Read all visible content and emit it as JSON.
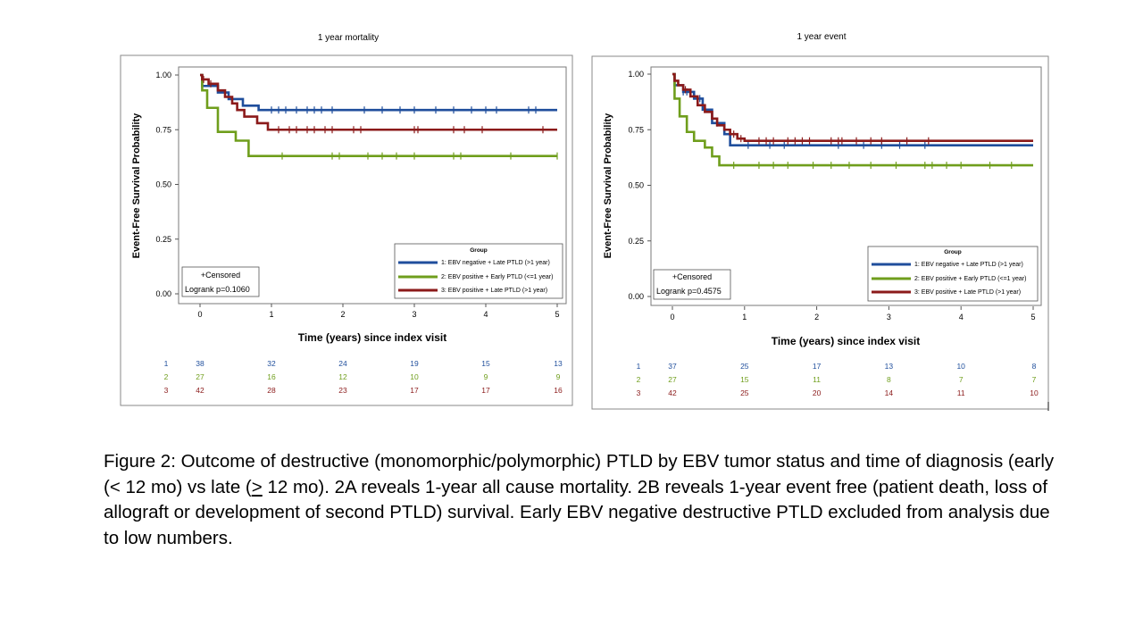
{
  "charts": [
    {
      "title": "1 year mortality",
      "xlabel": "Time (years) since index visit",
      "ylabel": "Event-Free Survival Probability",
      "x_ticks": [
        "0",
        "1",
        "2",
        "3",
        "4",
        "5"
      ],
      "y_ticks": [
        "0.00",
        "0.25",
        "0.50",
        "0.75",
        "1.00"
      ],
      "censored_label": "+Censored",
      "logrank_label": "Logrank p=0.1060",
      "legend_title": "Group",
      "legend_items": [
        "1: EBV negative + Late PTLD (>1 year)",
        "2: EBV positive + Early PTLD (<=1 year)",
        "3: EBV positive + Late PTLD (>1 year)"
      ],
      "risk_table": [
        {
          "group": "1",
          "counts": [
            "38",
            "32",
            "24",
            "19",
            "15",
            "13"
          ]
        },
        {
          "group": "2",
          "counts": [
            "27",
            "16",
            "12",
            "10",
            "9",
            "9"
          ]
        },
        {
          "group": "3",
          "counts": [
            "42",
            "28",
            "23",
            "17",
            "17",
            "16"
          ]
        }
      ]
    },
    {
      "title": "1 year event",
      "xlabel": "Time (years) since index visit",
      "ylabel": "Event-Free Survival Probability",
      "x_ticks": [
        "0",
        "1",
        "2",
        "3",
        "4",
        "5"
      ],
      "y_ticks": [
        "0.00",
        "0.25",
        "0.50",
        "0.75",
        "1.00"
      ],
      "censored_label": "+Censored",
      "logrank_label": "Logrank p=0.4575",
      "legend_title": "Group",
      "legend_items": [
        "1: EBV negative + Late PTLD (>1 year)",
        "2: EBV positive + Early PTLD (<=1 year)",
        "3: EBV positive + Late PTLD (>1 year)"
      ],
      "risk_table": [
        {
          "group": "1",
          "counts": [
            "37",
            "25",
            "17",
            "13",
            "10",
            "8"
          ]
        },
        {
          "group": "2",
          "counts": [
            "27",
            "15",
            "11",
            "8",
            "7",
            "7"
          ]
        },
        {
          "group": "3",
          "counts": [
            "42",
            "25",
            "20",
            "14",
            "11",
            "10"
          ]
        }
      ]
    }
  ],
  "chart_data": [
    {
      "type": "line",
      "title": "1 year mortality",
      "xlabel": "Time (years) since index visit",
      "ylabel": "Event-Free Survival Probability",
      "xlim": [
        0,
        5
      ],
      "ylim": [
        0,
        1
      ],
      "colors": [
        "#1f4e9c",
        "#6f9e1c",
        "#8b1a1a"
      ],
      "series": [
        {
          "name": "1: EBV negative + Late PTLD (>1 year)",
          "x": [
            0,
            0.03,
            0.25,
            0.4,
            0.6,
            0.82,
            5
          ],
          "y": [
            1.0,
            0.95,
            0.92,
            0.89,
            0.86,
            0.84,
            0.84
          ],
          "censored": [
            1.0,
            1.1,
            1.2,
            1.35,
            1.5,
            1.6,
            1.7,
            1.85,
            2.3,
            2.55,
            2.8,
            3.0,
            3.3,
            3.55,
            3.8,
            4.0,
            4.15,
            4.6,
            4.7
          ]
        },
        {
          "name": "2: EBV positive + Early PTLD (<=1 year)",
          "x": [
            0,
            0.03,
            0.1,
            0.25,
            0.5,
            0.68,
            5
          ],
          "y": [
            1.0,
            0.93,
            0.85,
            0.74,
            0.7,
            0.63,
            0.63
          ],
          "censored": [
            1.15,
            1.85,
            1.95,
            2.35,
            2.55,
            2.75,
            3.0,
            3.55,
            3.65,
            4.35,
            5.0
          ]
        },
        {
          "name": "3: EBV positive + Late PTLD (>1 year)",
          "x": [
            0,
            0.03,
            0.12,
            0.25,
            0.35,
            0.45,
            0.52,
            0.62,
            0.8,
            0.95,
            5
          ],
          "y": [
            1.0,
            0.98,
            0.96,
            0.93,
            0.9,
            0.87,
            0.84,
            0.81,
            0.78,
            0.75,
            0.75
          ],
          "censored": [
            0.05,
            0.15,
            1.1,
            1.25,
            1.35,
            1.5,
            1.6,
            1.75,
            1.85,
            2.15,
            2.25,
            3.0,
            3.05,
            3.55,
            3.7,
            3.95,
            4.8
          ]
        }
      ]
    },
    {
      "type": "line",
      "title": "1 year event",
      "xlabel": "Time (years) since index visit",
      "ylabel": "Event-Free Survival Probability",
      "xlim": [
        0,
        5
      ],
      "ylim": [
        0,
        1
      ],
      "colors": [
        "#1f4e9c",
        "#6f9e1c",
        "#8b1a1a"
      ],
      "series": [
        {
          "name": "1: EBV negative + Late PTLD (>1 year)",
          "x": [
            0,
            0.03,
            0.15,
            0.3,
            0.42,
            0.55,
            0.72,
            0.8,
            5
          ],
          "y": [
            1.0,
            0.95,
            0.92,
            0.89,
            0.84,
            0.78,
            0.73,
            0.68,
            0.68
          ],
          "censored": [
            0.15,
            0.2,
            0.38,
            0.62,
            1.05,
            1.35,
            1.55,
            2.3,
            2.65,
            2.9,
            3.15,
            3.5
          ]
        },
        {
          "name": "2: EBV positive + Early PTLD (<=1 year)",
          "x": [
            0,
            0.03,
            0.1,
            0.2,
            0.3,
            0.45,
            0.55,
            0.65,
            5
          ],
          "y": [
            1.0,
            0.89,
            0.81,
            0.74,
            0.7,
            0.67,
            0.63,
            0.59,
            0.59
          ],
          "censored": [
            0.85,
            1.2,
            1.4,
            1.6,
            1.95,
            2.2,
            2.45,
            2.75,
            3.1,
            3.5,
            3.6,
            3.8,
            4.0,
            4.4,
            4.7
          ]
        },
        {
          "name": "3: EBV positive + Late PTLD (>1 year)",
          "x": [
            0,
            0.03,
            0.08,
            0.15,
            0.25,
            0.35,
            0.45,
            0.55,
            0.62,
            0.72,
            0.8,
            0.9,
            1.0,
            5
          ],
          "y": [
            1.0,
            0.97,
            0.95,
            0.93,
            0.9,
            0.86,
            0.83,
            0.8,
            0.77,
            0.75,
            0.73,
            0.71,
            0.7,
            0.7
          ],
          "censored": [
            0.18,
            0.85,
            0.95,
            1.2,
            1.3,
            1.4,
            1.6,
            1.7,
            1.8,
            1.9,
            2.2,
            2.3,
            2.35,
            2.55,
            2.75,
            2.9,
            3.25,
            3.55
          ]
        }
      ]
    }
  ],
  "caption": {
    "part1": "Figure 2:  Outcome of destructive (monomorphic/polymorphic) PTLD by EBV tumor status and time of diagnosis (early (< 12 mo) vs late (",
    "ge": ">",
    "part2": " 12 mo).  2A reveals 1-year all cause mortality. 2B reveals 1-year event free (patient death, loss of allograft or development of second PTLD) survival. Early EBV negative destructive PTLD excluded from analysis due to low numbers."
  }
}
